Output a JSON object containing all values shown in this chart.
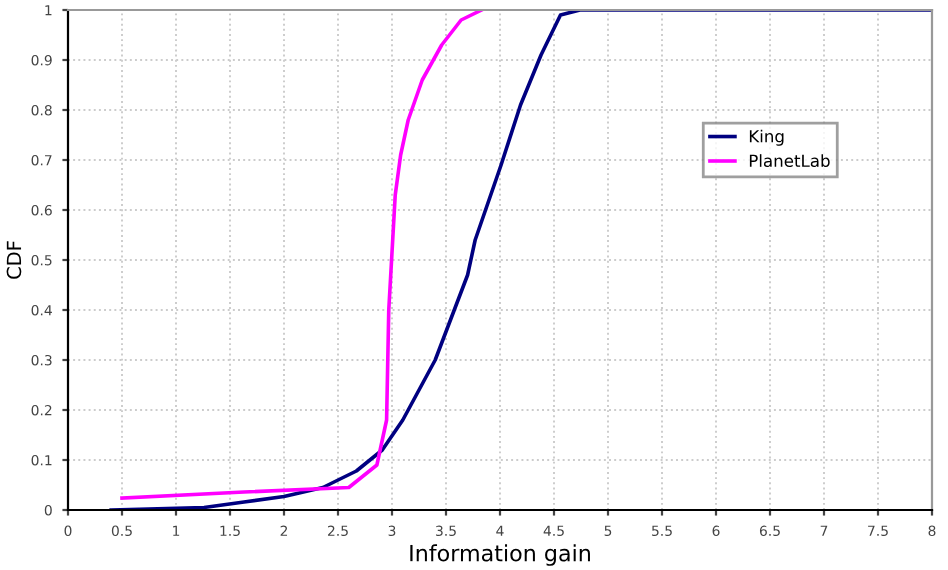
{
  "chart_data": {
    "type": "line",
    "xlabel": "Information gain",
    "ylabel": "CDF",
    "xlim": [
      0,
      8
    ],
    "ylim": [
      0,
      1
    ],
    "xticks": [
      0,
      0.5,
      1,
      1.5,
      2,
      2.5,
      3,
      3.5,
      4,
      4.5,
      5,
      5.5,
      6,
      6.5,
      7,
      7.5,
      8
    ],
    "yticks": [
      0,
      0.1,
      0.2,
      0.3,
      0.4,
      0.5,
      0.6,
      0.7,
      0.8,
      0.9,
      1
    ],
    "grid": true,
    "legend": "right",
    "marker": "none",
    "line_style": "solid",
    "series": [
      {
        "name": "King",
        "color": "#000080",
        "x": [
          0.4,
          1.26,
          1.63,
          2.0,
          2.36,
          2.67,
          2.91,
          3.1,
          3.4,
          3.7,
          3.77,
          4.01,
          4.19,
          4.38,
          4.56,
          4.74,
          8
        ],
        "values": [
          0,
          0.005,
          0.016,
          0.027,
          0.045,
          0.078,
          0.12,
          0.18,
          0.3,
          0.47,
          0.54,
          0.69,
          0.81,
          0.91,
          0.99,
          1,
          1
        ]
      },
      {
        "name": "PlanetLab",
        "color": "#ff00ff",
        "x": [
          0.5,
          1.63,
          2.6,
          2.86,
          2.95,
          2.97,
          3.03,
          3.08,
          3.15,
          3.28,
          3.46,
          3.64,
          3.83
        ],
        "values": [
          0.024,
          0.036,
          0.045,
          0.09,
          0.18,
          0.4,
          0.63,
          0.71,
          0.78,
          0.86,
          0.93,
          0.98,
          1
        ]
      }
    ]
  }
}
